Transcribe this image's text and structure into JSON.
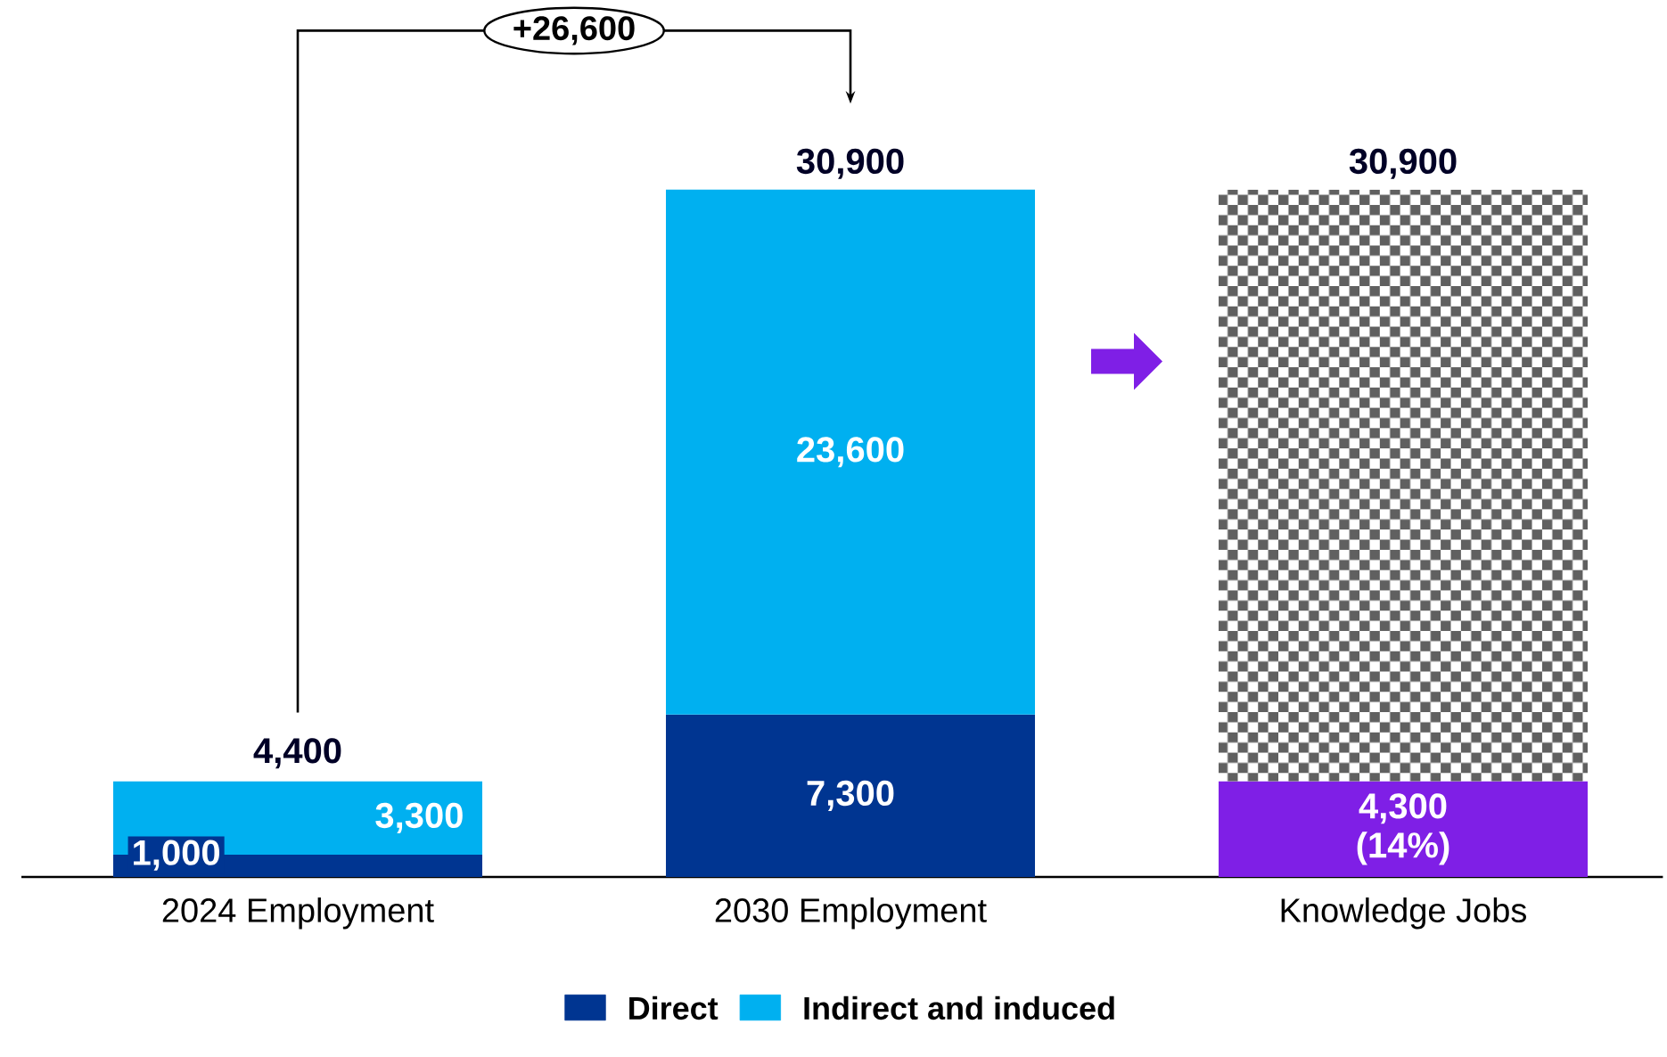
{
  "chart_data": {
    "type": "bar",
    "stacked": true,
    "categories": [
      "2024 Employment",
      "2030 Employment",
      "Knowledge Jobs"
    ],
    "series": [
      {
        "name": "Direct",
        "color": "#003591",
        "values": [
          1000,
          7300,
          null
        ],
        "value_labels": [
          "1,000",
          "7,300",
          null
        ]
      },
      {
        "name": "Indirect and induced",
        "color": "#00b0f0",
        "values": [
          3300,
          23600,
          null
        ],
        "value_labels": [
          "3,300",
          "23,600",
          null
        ]
      },
      {
        "color": "#7f1fe6",
        "values": [
          null,
          null,
          4300
        ],
        "value_labels": [
          null,
          null,
          "4,300 (14%)"
        ]
      },
      {
        "color": "#606060",
        "values": [
          null,
          null,
          26600
        ]
      }
    ],
    "annotations": [
      "+26,600",
      {
        "text": "4,400",
        "x": "2024 Employment",
        "y": 4400
      },
      {
        "text": "30,900",
        "x": "2030 Employment",
        "y": 30900
      },
      {
        "text": "30,900",
        "x": "Knowledge Jobs",
        "y": 30900
      }
    ],
    "legend": "bottom"
  }
}
